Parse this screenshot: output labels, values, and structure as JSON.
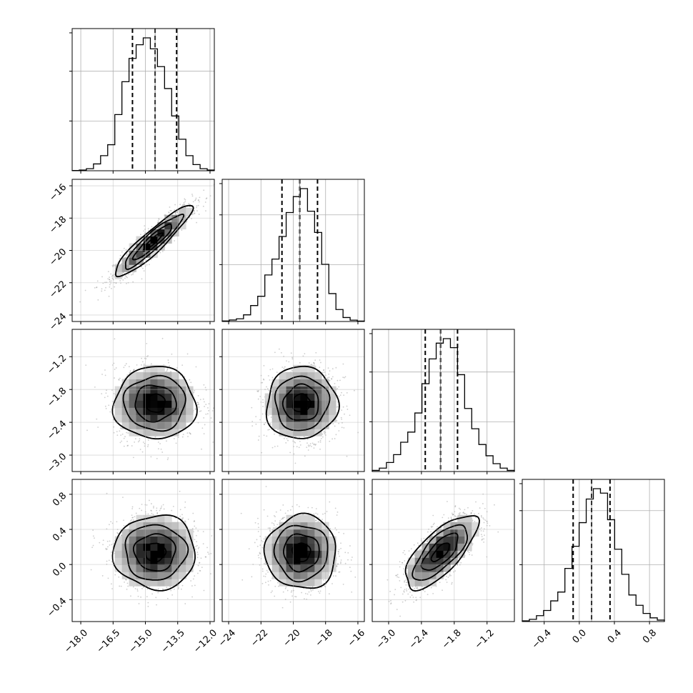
{
  "chart_data": {
    "type": "corner",
    "parameters": [
      {
        "range": [
          -18.4,
          -11.8
        ],
        "ticks": [
          -18.0,
          -16.5,
          -15.0,
          -13.5,
          -12.0
        ],
        "tick_labels": [
          "−18.0",
          "−16.5",
          "−15.0",
          "−13.5",
          "−12.0"
        ],
        "median": -14.55,
        "quantiles": [
          -15.6,
          -14.55,
          -13.55
        ],
        "hist_edges": [
          -18.4,
          -18.07,
          -17.74,
          -17.41,
          -17.08,
          -16.75,
          -16.42,
          -16.09,
          -15.76,
          -15.43,
          -15.1,
          -14.77,
          -14.44,
          -14.11,
          -13.78,
          -13.45,
          -13.12,
          -12.79,
          -12.46,
          -12.13,
          -11.8
        ],
        "hist_counts": [
          0.2,
          0.5,
          1.5,
          5,
          11,
          19,
          41,
          65,
          82,
          92,
          97,
          89,
          76,
          60,
          40,
          23,
          11,
          4.5,
          1.5,
          0.5
        ],
        "hist_grid": [
          0.35,
          0.7
        ]
      },
      {
        "range": [
          -24.4,
          -15.6
        ],
        "ticks": [
          -24,
          -22,
          -20,
          -18,
          -16
        ],
        "tick_labels": [
          "−24",
          "−22",
          "−20",
          "−18",
          "−16"
        ],
        "median": -19.6,
        "quantiles": [
          -20.7,
          -19.6,
          -18.5
        ],
        "hist_edges": [
          -24.4,
          -23.96,
          -23.52,
          -23.08,
          -22.64,
          -22.2,
          -21.76,
          -21.32,
          -20.88,
          -20.44,
          -20.0,
          -19.56,
          -19.12,
          -18.68,
          -18.24,
          -17.8,
          -17.36,
          -16.92,
          -16.48,
          -16.04,
          -15.6
        ],
        "hist_counts": [
          0.4,
          1.1,
          2,
          5,
          12,
          19,
          35,
          47,
          64,
          82,
          94,
          100,
          83,
          67,
          43,
          21,
          9,
          3,
          1,
          0.3
        ],
        "hist_grid": [
          0.4,
          0.75
        ]
      },
      {
        "range": [
          -3.3,
          -0.7
        ],
        "ticks": [
          -3.0,
          -2.4,
          -1.8,
          -1.2
        ],
        "tick_labels": [
          "−3.0",
          "−2.4",
          "−1.8",
          "−1.2"
        ],
        "median": -2.05,
        "quantiles": [
          -2.33,
          -2.05,
          -1.74
        ],
        "hist_edges": [
          -3.3,
          -3.17,
          -3.04,
          -2.91,
          -2.78,
          -2.65,
          -2.52,
          -2.39,
          -2.26,
          -2.13,
          -2.0,
          -1.87,
          -1.74,
          -1.61,
          -1.48,
          -1.35,
          -1.22,
          -1.09,
          -0.96,
          -0.83,
          -0.7
        ],
        "hist_counts": [
          0.5,
          1.5,
          4,
          7.5,
          13,
          17.5,
          26,
          39,
          50,
          57,
          59,
          55,
          43,
          28,
          19,
          12,
          7,
          3.5,
          1.5,
          0.5
        ],
        "hist_grid": [
          0.35,
          0.7
        ]
      },
      {
        "range": [
          -0.65,
          0.97
        ],
        "ticks": [
          -0.4,
          0.0,
          0.4,
          0.8
        ],
        "tick_labels": [
          "−0.4",
          "0.0",
          "0.4",
          "0.8"
        ],
        "median": 0.14,
        "quantiles": [
          -0.07,
          0.14,
          0.35
        ],
        "hist_edges": [
          -0.65,
          -0.569,
          -0.488,
          -0.407,
          -0.326,
          -0.245,
          -0.164,
          -0.083,
          -0.002,
          0.079,
          0.16,
          0.241,
          0.322,
          0.403,
          0.484,
          0.565,
          0.646,
          0.727,
          0.808,
          0.889,
          0.97
        ],
        "hist_counts": [
          0.5,
          1.5,
          4,
          7.5,
          14,
          20,
          36,
          51,
          67,
          83,
          90,
          87,
          69,
          49,
          32,
          18,
          11,
          5.5,
          2.5,
          1
        ],
        "hist_grid": [
          0.4,
          0.78
        ]
      }
    ],
    "pairs": [
      {
        "row": 1,
        "col": 0,
        "mean": [
          -14.65,
          -19.45
        ],
        "sd": [
          0.9,
          1.1
        ],
        "corr": 0.92
      },
      {
        "row": 2,
        "col": 0,
        "mean": [
          -14.55,
          -2.05
        ],
        "sd": [
          0.95,
          0.33
        ],
        "corr": 0.0
      },
      {
        "row": 2,
        "col": 1,
        "mean": [
          -19.5,
          -2.05
        ],
        "sd": [
          1.1,
          0.33
        ],
        "corr": 0.03
      },
      {
        "row": 3,
        "col": 0,
        "mean": [
          -14.55,
          0.14
        ],
        "sd": [
          0.95,
          0.21
        ],
        "corr": 0.0
      },
      {
        "row": 3,
        "col": 1,
        "mean": [
          -19.5,
          0.14
        ],
        "sd": [
          1.1,
          0.21
        ],
        "corr": 0.0
      },
      {
        "row": 3,
        "col": 2,
        "mean": [
          -2.05,
          0.14
        ],
        "sd": [
          0.33,
          0.21
        ],
        "corr": 0.72
      }
    ],
    "contour_levels_sigma": [
      0.5,
      1.0,
      1.5,
      2.0
    ],
    "grid": true,
    "colors": {
      "points": "#6f6f6f",
      "density_max": "#000000",
      "line": "#000000",
      "grid": "#b0b0b0"
    }
  }
}
